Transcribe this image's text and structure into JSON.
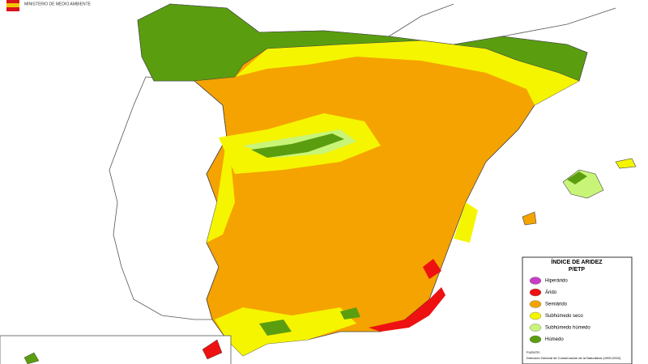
{
  "header": {
    "agency": "MINISTERIO DE MEDIO AMBIENTE"
  },
  "legend": {
    "title": "ÍNDICE DE ARIDEZ",
    "subtitle": "P/ETP",
    "items": [
      {
        "label": "Hiperárido",
        "color": "#c83cc8"
      },
      {
        "label": "Árido",
        "color": "#ee1111"
      },
      {
        "label": "Semiárido",
        "color": "#f5a300"
      },
      {
        "label": "Subhúmedo seco",
        "color": "#f5f500"
      },
      {
        "label": "Subhúmedo húmedo",
        "color": "#c8f578"
      },
      {
        "label": "Húmedo",
        "color": "#5a9e10"
      }
    ]
  },
  "source": {
    "label": "FUENTE:",
    "text": "Dirección General de Conservación de la Naturaleza (1990-2002)"
  }
}
